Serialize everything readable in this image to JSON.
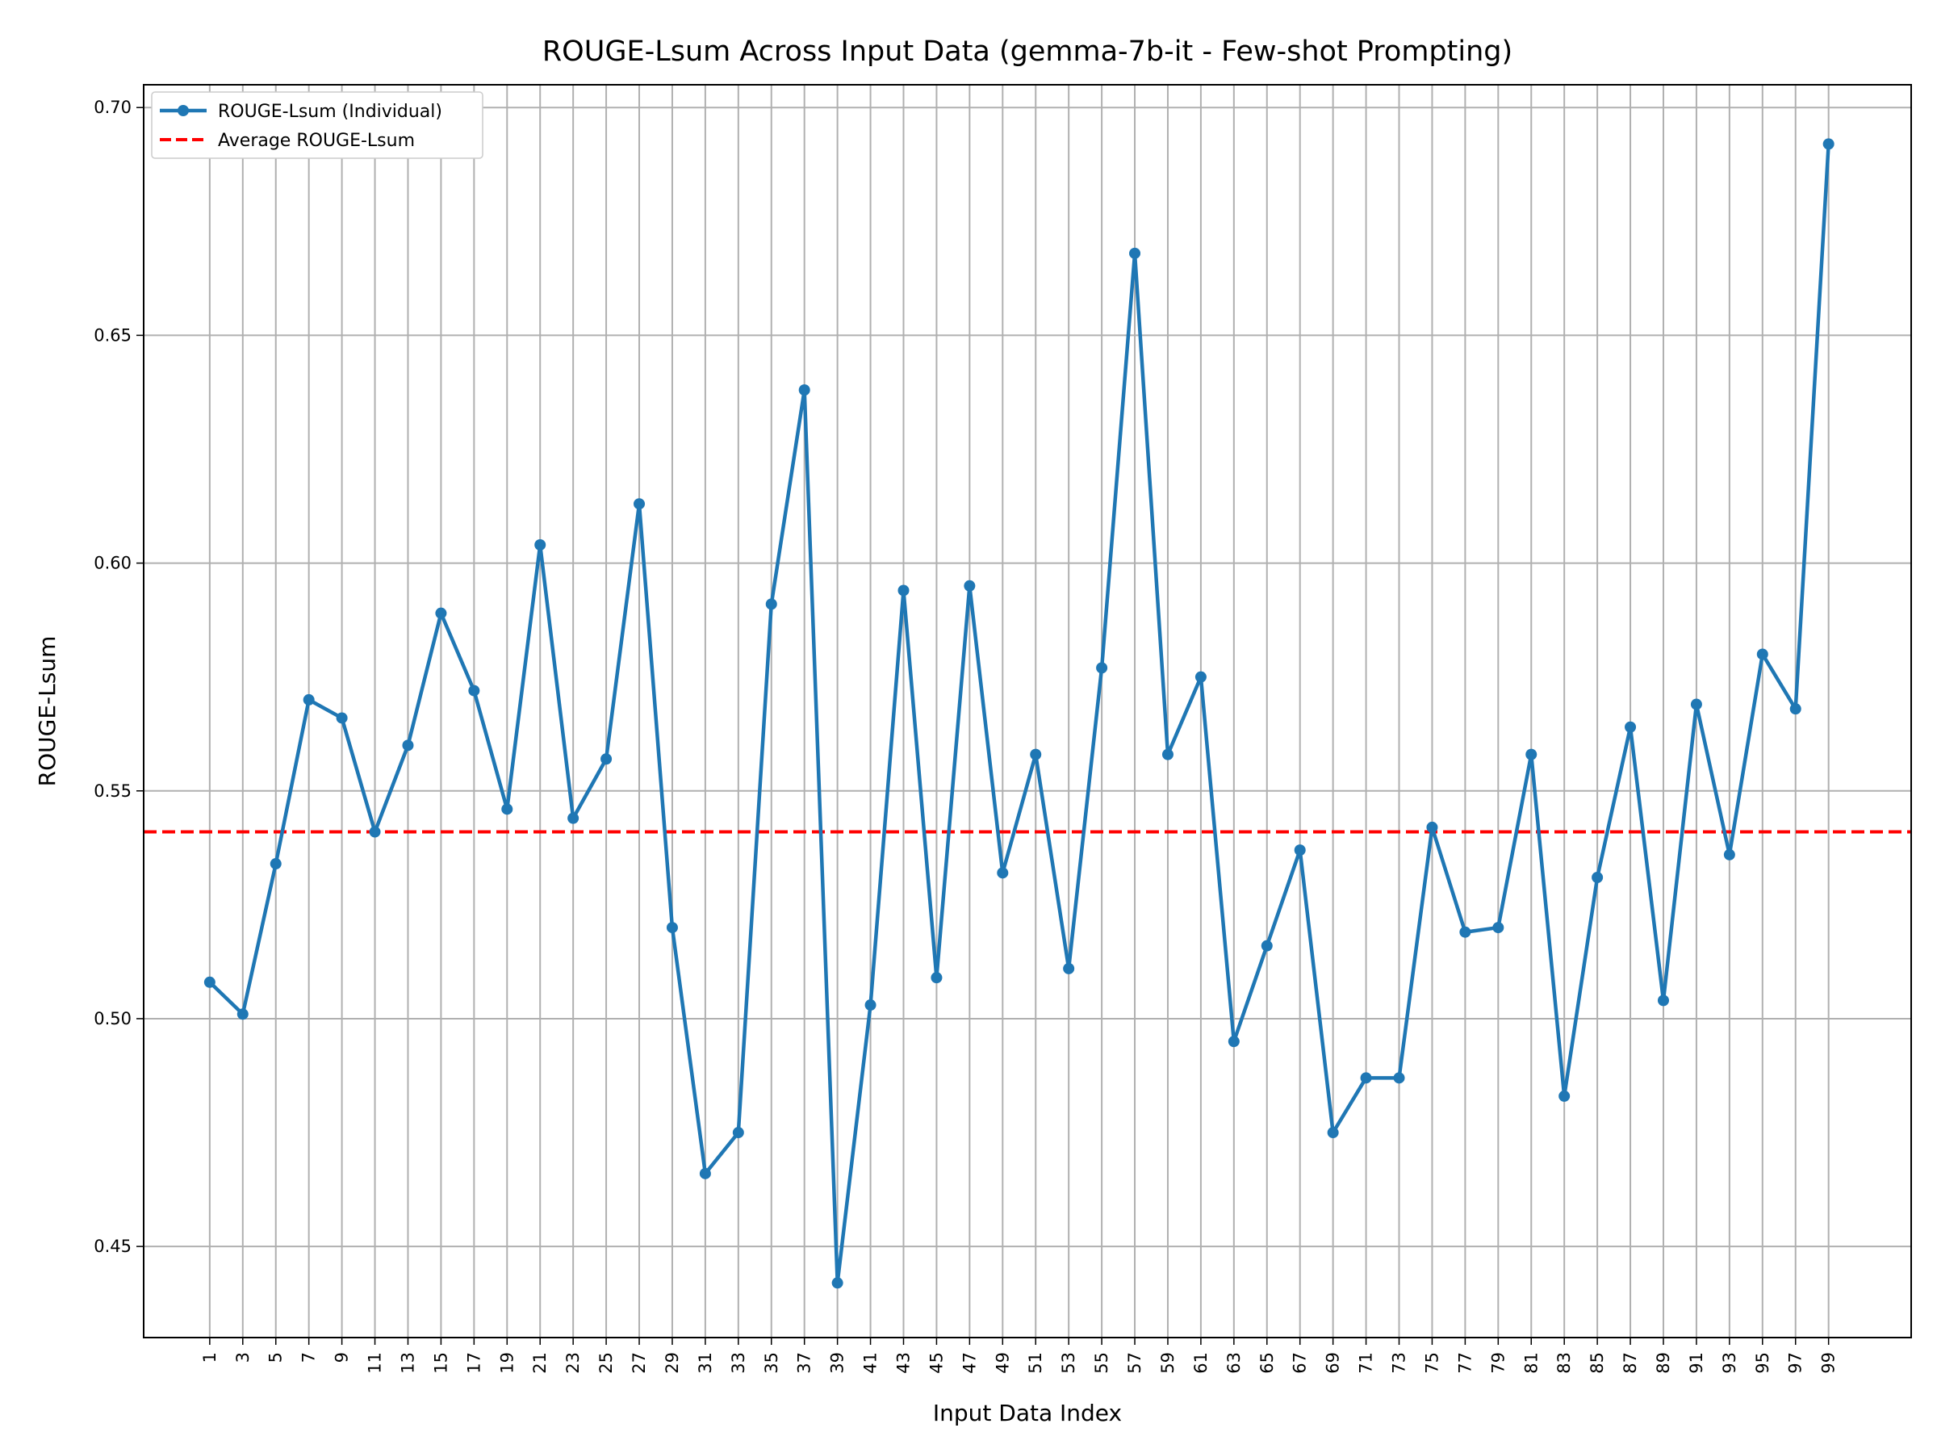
{
  "chart_data": {
    "type": "line",
    "title": "ROUGE-Lsum Across Input Data (gemma-7b-it - Few-shot Prompting)",
    "xlabel": "Input Data Index",
    "ylabel": "ROUGE-Lsum",
    "x": [
      1,
      3,
      5,
      7,
      9,
      11,
      13,
      15,
      17,
      19,
      21,
      23,
      25,
      27,
      29,
      31,
      33,
      35,
      37,
      39,
      41,
      43,
      45,
      47,
      49,
      51,
      53,
      55,
      57,
      59,
      61,
      63,
      65,
      67,
      69,
      71,
      73,
      75,
      77,
      79,
      81,
      83,
      85,
      87,
      89,
      91,
      93,
      95,
      97,
      99
    ],
    "x_tick_labels": [
      "1",
      "3",
      "5",
      "7",
      "9",
      "11",
      "13",
      "15",
      "17",
      "19",
      "21",
      "23",
      "25",
      "27",
      "29",
      "31",
      "33",
      "35",
      "37",
      "39",
      "41",
      "43",
      "45",
      "47",
      "49",
      "51",
      "53",
      "55",
      "57",
      "59",
      "61",
      "63",
      "65",
      "67",
      "69",
      "71",
      "73",
      "75",
      "77",
      "79",
      "81",
      "83",
      "85",
      "87",
      "89",
      "91",
      "93",
      "95",
      "97",
      "99"
    ],
    "xlim": [
      -3,
      104
    ],
    "ylim": [
      0.43,
      0.705
    ],
    "y_ticks": [
      0.45,
      0.5,
      0.55,
      0.6,
      0.65,
      0.7
    ],
    "y_tick_labels": [
      "0.45",
      "0.50",
      "0.55",
      "0.60",
      "0.65",
      "0.70"
    ],
    "grid": true,
    "legend_position": "top-left",
    "series": [
      {
        "name": "ROUGE-Lsum (Individual)",
        "color": "#1f77b4",
        "style": "solid",
        "marker": "circle",
        "values": [
          0.508,
          0.501,
          0.534,
          0.57,
          0.566,
          0.541,
          0.56,
          0.589,
          0.572,
          0.546,
          0.604,
          0.544,
          0.557,
          0.613,
          0.52,
          0.466,
          0.475,
          0.591,
          0.638,
          0.442,
          0.503,
          0.594,
          0.509,
          0.595,
          0.532,
          0.558,
          0.511,
          0.577,
          0.668,
          0.558,
          0.575,
          0.495,
          0.516,
          0.537,
          0.475,
          0.487,
          0.487,
          0.542,
          0.519,
          0.52,
          0.558,
          0.483,
          0.531,
          0.564,
          0.504,
          0.569,
          0.536,
          0.58,
          0.568,
          0.692
        ]
      },
      {
        "name": "Average ROUGE-Lsum",
        "color": "#ff0000",
        "style": "dashed",
        "value": 0.541
      }
    ]
  }
}
